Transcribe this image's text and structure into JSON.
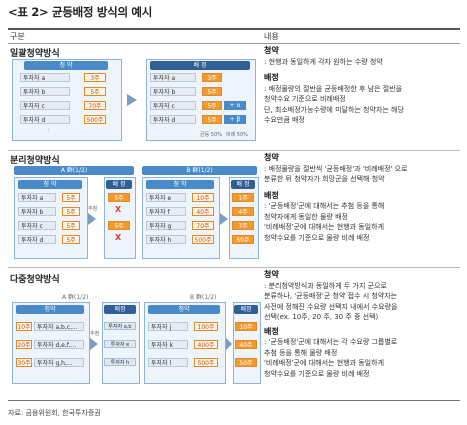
{
  "title": "<표 2> 균등배정 방식의 예시",
  "header": {
    "left": "구분",
    "right": "내용"
  },
  "sections": [
    {
      "name": "일괄청약방식",
      "left_pill": "청 약",
      "right_pill": "배 정",
      "rows": [
        {
          "label": "투자자 a",
          "amt": "3주"
        },
        {
          "label": "투자자 b",
          "amt": "5주"
        },
        {
          "label": "투자자 c",
          "amt": "70주"
        },
        {
          "label": "투자자 d",
          "amt": "500주"
        }
      ],
      "alloc": [
        {
          "label": "투자자 a",
          "amt": "3주",
          "plus": ""
        },
        {
          "label": "투자자 b",
          "amt": "5주",
          "plus": ""
        },
        {
          "label": "투자자 c",
          "amt": "5주",
          "plus": "+ α"
        },
        {
          "label": "투자자 d",
          "amt": "5주",
          "plus": "+ β"
        }
      ],
      "legend_a": "균등 50%",
      "legend_b": "비례 50%",
      "text": {
        "h1": "청약",
        "l1": ": 현행과 동일하게 각자 원하는 수량 청약",
        "h2": "배정",
        "l2": ": 배정물량의 절반을 균등배정한 후 남은 절반을",
        "l3": "청약수요 기준으로 비례배정",
        "l4": "단, 최소배정가능수량에 미달하는 청약자는 해당",
        "l5": "수요만큼 배정"
      }
    },
    {
      "name": "분리청약방식",
      "groupA": "A 群(1/2)",
      "groupB": "B 群(1/2)",
      "pill_sub": "청 약",
      "pill_alloc": "배 정",
      "arrow_label": "추첨",
      "a_rows": [
        {
          "label": "투자자 a",
          "amt": "5주"
        },
        {
          "label": "투자자 b",
          "amt": "5주"
        },
        {
          "label": "투자자 c",
          "amt": "5주"
        },
        {
          "label": "투자자 d",
          "amt": "5주"
        }
      ],
      "a_alloc": [
        "5주",
        "X",
        "5주",
        "X"
      ],
      "b_rows": [
        {
          "label": "투자자 e",
          "amt": "10주"
        },
        {
          "label": "투자자 f",
          "amt": "40주"
        },
        {
          "label": "투자자 g",
          "amt": "70주"
        },
        {
          "label": "투자자 h",
          "amt": "500주"
        }
      ],
      "b_alloc": [
        "1주",
        "4주",
        "7주",
        "50주"
      ],
      "text": {
        "h1": "청약",
        "l1": ": 배정물량을 절반씩 '균등배정'과 '비례배정' 으로",
        "l2": "분류한 뒤 청약자가 희망군을 선택해 청약",
        "h2": "배정",
        "l3": ": '균등배정'군에 대해서는 추첨 등을 통해",
        "l4": "청약자에게 동일한 물량 배정",
        "l5": "'비례배정'군에 대해서는 현행과 동일하게",
        "l6": "청약수요를 기준으로 물량 비례 배정"
      }
    },
    {
      "name": "다중청약방식",
      "groupA": "A 群(1/2)",
      "groupB": "B 群(1/2)",
      "pill_sub": "청약",
      "pill_alloc": "배정",
      "arrow_label": "추첨",
      "a_rows": [
        {
          "pre": "10주",
          "label": "투자자 a,b,c,..."
        },
        {
          "pre": "20주",
          "label": "투자자 d,e,f,..."
        },
        {
          "pre": "30주",
          "label": "투자자 g,h,..."
        }
      ],
      "a_alloc": [
        "투자자 a,b",
        "투자자 e",
        "투자자 h"
      ],
      "b_rows": [
        {
          "label": "투자자 j",
          "amt": "100주"
        },
        {
          "label": "투자자 k",
          "amt": "400주"
        },
        {
          "label": "투자자 l",
          "amt": "500주"
        }
      ],
      "b_alloc": [
        "10주",
        "40주",
        "50주"
      ],
      "text": {
        "h1": "청약",
        "l1": ": 분리청약방식과 동일하게 두 가지 군으로",
        "l2": "분류하나, '균등배정'군 청약 접수 시 청약자는",
        "l3": "사전에 정해진 수요량 선택지 내에서 수요량을",
        "l4": "선택(ex. 10주, 20 주, 30 주 중 선택)",
        "h2": "배정",
        "l5": ": '균등배정'군에 대해서는 각 수요량 그룹별로",
        "l6": "추첨 등을 통해 물량 배정",
        "l7": "'비례배정'군에 대해서는 현행과 동일하게",
        "l8": "청약수요를 기준으로 물량 비례 배정"
      }
    }
  ],
  "source": "자료: 금융위원회, 한국투자증권",
  "colors": {
    "accent": "#4a8ac9",
    "order": "#f39a2f",
    "red": "#d63b2b"
  }
}
